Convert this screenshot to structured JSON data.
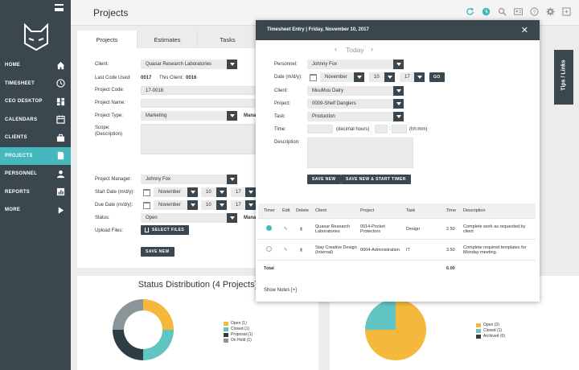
{
  "sidebar": {
    "items": [
      {
        "label": "HOME",
        "icon": "home-icon"
      },
      {
        "label": "TIMESHEET",
        "icon": "clock-icon"
      },
      {
        "label": "CEO DESKTOP",
        "icon": "dashboard-icon"
      },
      {
        "label": "CALENDARS",
        "icon": "calendar-icon"
      },
      {
        "label": "CLIENTS",
        "icon": "briefcase-icon"
      },
      {
        "label": "PROJECTS",
        "icon": "document-icon"
      },
      {
        "label": "PERSONNEL",
        "icon": "person-icon"
      },
      {
        "label": "REPORTS",
        "icon": "bar-chart-icon"
      },
      {
        "label": "MORE",
        "icon": "play-icon"
      }
    ],
    "active_index": 5
  },
  "header": {
    "title": "Projects"
  },
  "colors": {
    "sidebar": "#3a474e",
    "accent": "#45b8bd",
    "yellow": "#f4b93c",
    "teal": "#62c4c3",
    "gray": "#8b9499",
    "dark": "#2f3d44"
  },
  "tabs": [
    "Projects",
    "Estimates",
    "Tasks"
  ],
  "form": {
    "client_label": "Client:",
    "client_value": "Quasar Research Laboratories",
    "last_code_label": "Last Code Used:",
    "last_code_value": "0017",
    "this_client_label": "This Client:",
    "this_client_value": "0016",
    "project_code_label": "Project Code:",
    "project_code_value": "17-0018",
    "project_name_label": "Project Name:",
    "project_type_label": "Project Type:",
    "project_type_value": "Marketing",
    "project_type_extra": "Mana",
    "scope_label": "Scope:",
    "scope_sub": "(Description)",
    "pm_label": "Project Manager:",
    "pm_value": "Johnny Fox",
    "start_label": "Start Date (m/d/y):",
    "start_month": "November",
    "start_day": "10",
    "start_year": "17",
    "due_label": "Due Date (m/d/y):",
    "due_month": "November",
    "due_day": "10",
    "due_year": "17",
    "status_label": "Status:",
    "status_value": "Open",
    "status_extra": "Mana",
    "upload_label": "Upload Files:",
    "select_files": "SELECT FILES",
    "save_new": "SAVE NEW"
  },
  "modal": {
    "title": "Timesheet Entry | Friday, November 10, 2017",
    "today": "Today",
    "personnel_label": "Personnel:",
    "personnel_value": "Johnny Fox",
    "date_label": "Date (m/d/y):",
    "date_month": "November",
    "date_day": "10",
    "date_year": "17",
    "go": "GO",
    "client_label": "Client:",
    "client_value": "MuuMuu Dairy",
    "project_label": "Project:",
    "project_value": "0009-Shelf Danglers",
    "task_label": "Task:",
    "task_value": "Production",
    "time_label": "Time:",
    "decimal_hint": "(decimal hours)",
    "colon": ":",
    "hhmm_hint": "(hh:mm)",
    "description_label": "Description:",
    "save_new": "SAVE NEW",
    "save_new_start": "SAVE NEW & START TIMER",
    "columns": [
      "Timer",
      "Edit",
      "Delete",
      "Client",
      "Project",
      "Task",
      "Time",
      "Description"
    ],
    "rows": [
      {
        "client": "Quasar Research Laboratories",
        "project": "0014-Pocket Protectors",
        "task": "Design",
        "time": "2.50",
        "description": "Complete work as requested by client"
      },
      {
        "client": "Stay Creative Design (Internal)",
        "project": "0004-Administration",
        "task": "IT",
        "time": "3.50",
        "description": "Complete required templates for Monday meeting."
      }
    ],
    "total_label": "Total",
    "total_value": "6.00",
    "show_notes": "Show Notes [+]"
  },
  "tips": "Tips / Links",
  "status_panel": {
    "title": "Status Distribution (4 Projects)",
    "legend": [
      {
        "label": "Open (1)",
        "color": "#f4b93c",
        "value": 1
      },
      {
        "label": "Closed (1)",
        "color": "#62c4c3",
        "value": 1
      },
      {
        "label": "Proposal (1)",
        "color": "#2f3d44",
        "value": 1
      },
      {
        "label": "On Hold (1)",
        "color": "#8b9499",
        "value": 1
      }
    ]
  },
  "right_panel": {
    "legend": [
      {
        "label": "Open (3)",
        "color": "#f4b93c",
        "value": 3
      },
      {
        "label": "Closed (1)",
        "color": "#62c4c3",
        "value": 1
      },
      {
        "label": "Archived (0)",
        "color": "#2f3d44",
        "value": 0
      }
    ]
  }
}
